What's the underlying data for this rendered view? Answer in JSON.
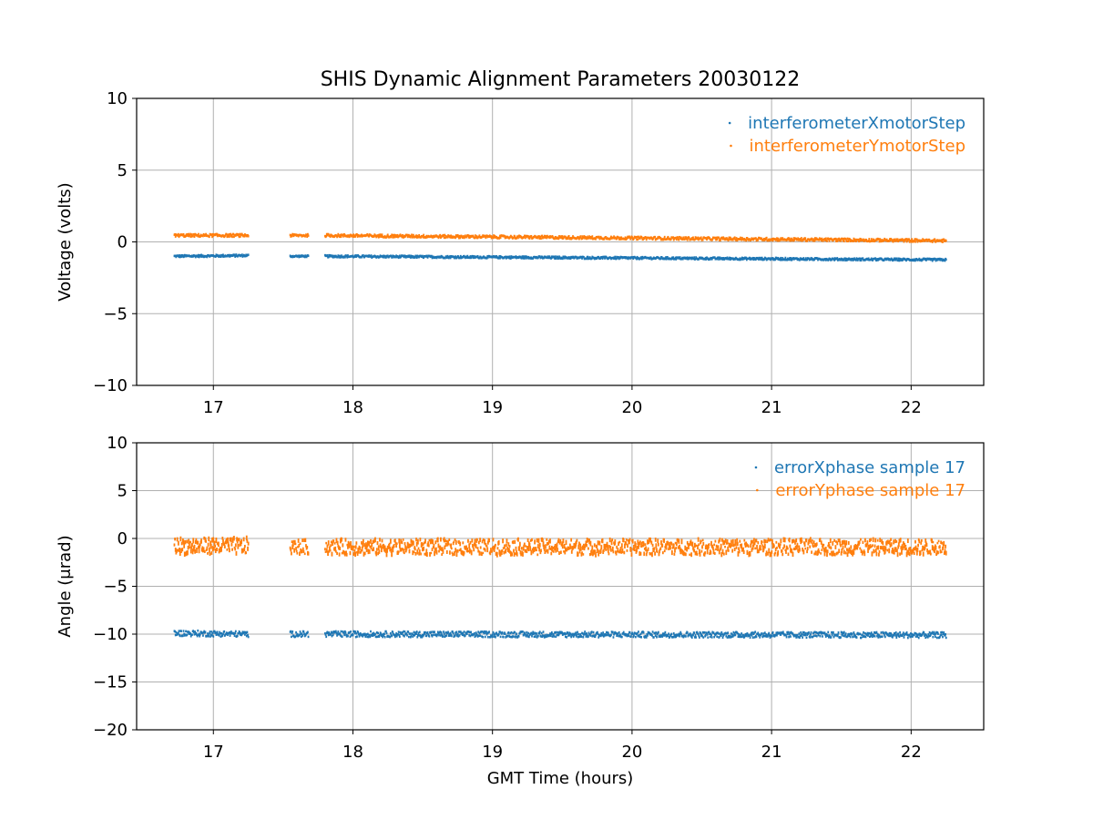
{
  "chart_data": [
    {
      "type": "scatter",
      "title": "SHIS Dynamic Alignment Parameters 20030122",
      "xlabel": "",
      "ylabel": "Voltage (volts)",
      "xlim": [
        16.45,
        22.52
      ],
      "ylim": [
        -10,
        10
      ],
      "xticks": [
        17,
        18,
        19,
        20,
        21,
        22
      ],
      "yticks": [
        -10,
        -5,
        0,
        5,
        10
      ],
      "ytick_labels": [
        "−10",
        "−5",
        "0",
        "5",
        "10"
      ],
      "grid": true,
      "legend_position": "top-right",
      "series": [
        {
          "name": "interferometerXmotorStep",
          "color": "#1f77b4",
          "segments": [
            {
              "x": [
                16.72,
                17.25
              ],
              "y": [
                -1.0,
                -0.95
              ],
              "spread": 0.15
            },
            {
              "x": [
                17.55,
                17.68
              ],
              "y": [
                -1.0,
                -1.0
              ],
              "spread": 0.12
            },
            {
              "x": [
                17.8,
                22.25
              ],
              "y": [
                -1.0,
                -1.25
              ],
              "spread": 0.15
            }
          ]
        },
        {
          "name": "interferometerYmotorStep",
          "color": "#ff7f0e",
          "segments": [
            {
              "x": [
                16.72,
                17.25
              ],
              "y": [
                0.45,
                0.45
              ],
              "spread": 0.2
            },
            {
              "x": [
                17.55,
                17.68
              ],
              "y": [
                0.45,
                0.45
              ],
              "spread": 0.18
            },
            {
              "x": [
                17.8,
                22.25
              ],
              "y": [
                0.45,
                0.08
              ],
              "spread": 0.2
            }
          ]
        }
      ]
    },
    {
      "type": "scatter",
      "title": "",
      "xlabel": "GMT Time (hours)",
      "ylabel": "Angle (μrad)",
      "xlim": [
        16.45,
        22.52
      ],
      "ylim": [
        -20,
        10
      ],
      "xticks": [
        17,
        18,
        19,
        20,
        21,
        22
      ],
      "yticks": [
        -20,
        -15,
        -10,
        -5,
        0,
        5,
        10
      ],
      "ytick_labels": [
        "−20",
        "−15",
        "−10",
        "−5",
        "0",
        "5",
        "10"
      ],
      "grid": true,
      "legend_position": "top-right",
      "series": [
        {
          "name": "errorXphase sample 17",
          "color": "#1f77b4",
          "segments": [
            {
              "x": [
                16.72,
                17.25
              ],
              "y": [
                -9.9,
                -10.0
              ],
              "spread": 0.6
            },
            {
              "x": [
                17.55,
                17.68
              ],
              "y": [
                -10.0,
                -10.0
              ],
              "spread": 0.6
            },
            {
              "x": [
                17.8,
                22.25
              ],
              "y": [
                -10.0,
                -10.1
              ],
              "spread": 0.6
            }
          ]
        },
        {
          "name": "errorYphase sample 17",
          "color": "#ff7f0e",
          "segments": [
            {
              "x": [
                16.72,
                17.25
              ],
              "y": [
                -0.8,
                -0.8
              ],
              "spread": 1.7
            },
            {
              "x": [
                17.55,
                17.68
              ],
              "y": [
                -0.9,
                -0.9
              ],
              "spread": 1.5
            },
            {
              "x": [
                17.8,
                22.25
              ],
              "y": [
                -0.9,
                -0.9
              ],
              "spread": 1.6
            }
          ]
        }
      ]
    }
  ]
}
